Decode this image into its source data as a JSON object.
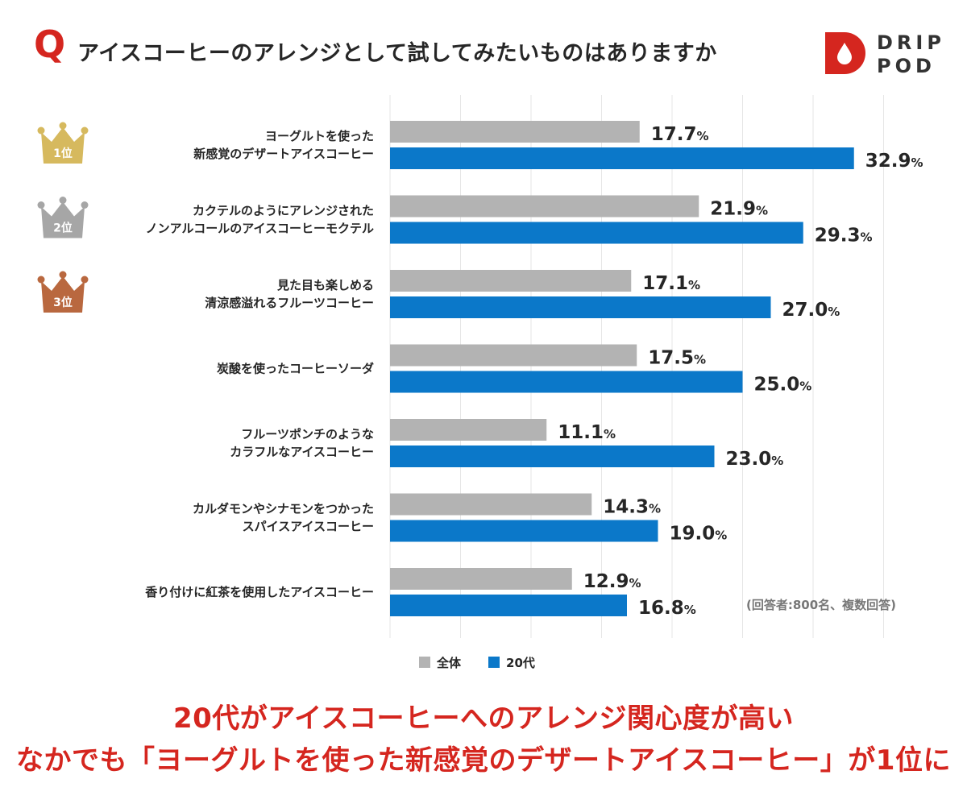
{
  "header": {
    "q_mark": "Q",
    "question": "アイスコーヒーのアレンジとして試してみたいものはありますか"
  },
  "logo": {
    "line1": "DRIP",
    "line2": "POD",
    "brand_color": "#d5261f"
  },
  "colors": {
    "all": "#b3b3b3",
    "age20": "#0b78c9",
    "accent": "#d5261f",
    "gold": "#d6b95e",
    "silver": "#a6a6a6",
    "bronze": "#b9683f"
  },
  "note": "(回答者:800名、複数回答)",
  "legend": [
    {
      "label": "全体",
      "color": "#b3b3b3"
    },
    {
      "label": "20代",
      "color": "#0b78c9"
    }
  ],
  "headline": {
    "line1": "20代がアイスコーヒーへのアレンジ関心度が高い",
    "line2": "なかでも「ヨーグルトを使った新感覚のデザートアイスコーヒー」が1位に"
  },
  "chart_data": {
    "type": "bar",
    "orientation": "horizontal",
    "unit": "%",
    "categories": [
      [
        "ヨーグルトを使った",
        "新感覚のデザートアイスコーヒー"
      ],
      [
        "カクテルのようにアレンジされた",
        "ノンアルコールのアイスコーヒーモクテル"
      ],
      [
        "見た目も楽しめる",
        "清涼感溢れるフルーツコーヒー"
      ],
      [
        "炭酸を使ったコーヒーソーダ"
      ],
      [
        "フルーツポンチのような",
        "カラフルなアイスコーヒー"
      ],
      [
        "カルダモンやシナモンをつかった",
        "スパイスアイスコーヒー"
      ],
      [
        "香り付けに紅茶を使用したアイスコーヒー"
      ]
    ],
    "ranks": [
      {
        "label": "1位",
        "color": "#d6b95e"
      },
      {
        "label": "2位",
        "color": "#a6a6a6"
      },
      {
        "label": "3位",
        "color": "#b9683f"
      }
    ],
    "series": [
      {
        "name": "全体",
        "color": "#b3b3b3",
        "values": [
          17.7,
          21.9,
          17.1,
          17.5,
          11.1,
          14.3,
          12.9
        ]
      },
      {
        "name": "20代",
        "color": "#0b78c9",
        "values": [
          32.9,
          29.3,
          27.0,
          25.0,
          23.0,
          19.0,
          16.8
        ]
      }
    ],
    "xlim": [
      0,
      35
    ],
    "grid": true
  }
}
